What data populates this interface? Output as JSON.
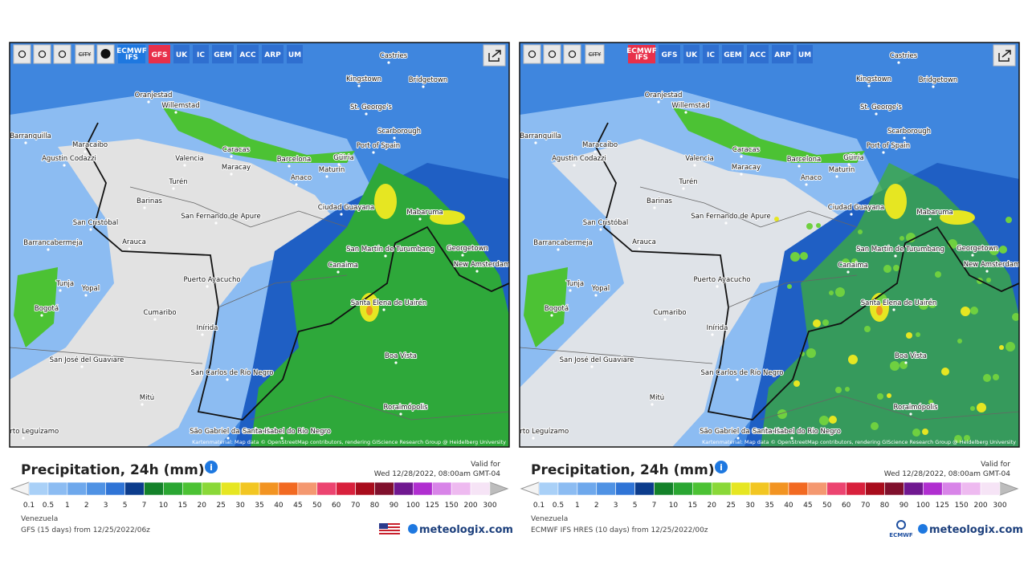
{
  "panels": [
    {
      "toolbar": {
        "city": "CITY",
        "models": [
          "ECMWF IFS",
          "GFS",
          "UK",
          "IC",
          "GEM",
          "ACC",
          "ARP",
          "UM"
        ],
        "active": 1
      },
      "cities": [
        "Castries",
        "Kingstown",
        "Bridgetown",
        "Oranjestad",
        "Willemstad",
        "St. George's",
        "Barranquilla",
        "Scarborough",
        "Maracaibo",
        "Port of Spain",
        "Caracas",
        "Agustin Codazzi",
        "Valencia",
        "Barcelona",
        "Güiria",
        "Maracay",
        "Maturín",
        "Anaco",
        "Turén",
        "Barinas",
        "Ciudad Guayana",
        "Mabaruma",
        "San Fernando de Apure",
        "San Cristóbal",
        "Arauca",
        "Barrancabermeja",
        "San Martín de Turumbang",
        "Georgetown",
        "Canaima",
        "New Amsterdam",
        "Tunja",
        "Puerto Ayacucho",
        "Yopal",
        "Santa Elena de Uairén",
        "Bogotá",
        "Cumaribo",
        "Inírida",
        "Boa Vista",
        "San José del Guaviare",
        "San Carlos de Río Negro",
        "Mitú",
        "Roraimópolis",
        "São Gabriel da Cachoeira",
        "Santa Isabel do Rio Negro",
        "Puerto Leguízamo"
      ],
      "attribution": "Kartenmaterial: Map data © OpenStreetMap contributors, rendering GIScience Research Group @ Heidelberg University",
      "title": "Precipitation, 24h (mm)",
      "valid_label": "Valid for",
      "valid_time": "Wed 12/28/2022, 08:00am GMT-04",
      "region": "Venezuela",
      "model_run": "GFS (15 days) from 12/25/2022/06z",
      "brand": "meteologix.com"
    },
    {
      "toolbar": {
        "city": "CITY",
        "models": [
          "ECMWF IFS",
          "GFS",
          "UK",
          "IC",
          "GEM",
          "ACC",
          "ARP",
          "UM"
        ],
        "active": 0
      },
      "cities": [
        "Castries",
        "Kingstown",
        "Bridgetown",
        "Oranjestad",
        "Willemstad",
        "St. George's",
        "Barranquilla",
        "Scarborough",
        "Maracaibo",
        "Port of Spain",
        "Caracas",
        "Agustin Codazzi",
        "Valencia",
        "Barcelona",
        "Güiria",
        "Maracay",
        "Maturín",
        "Anaco",
        "Turén",
        "Barinas",
        "Ciudad Guayana",
        "Mabaruma",
        "San Fernando de Apure",
        "San Cristóbal",
        "Arauca",
        "Barrancabermeja",
        "San Martín de Turumbang",
        "Georgetown",
        "Canaima",
        "New Amsterdam",
        "Tunja",
        "Puerto Ayacucho",
        "Yopal",
        "Santa Elena de Uairén",
        "Bogotá",
        "Cumaribo",
        "Inírida",
        "Boa Vista",
        "San José del Guaviare",
        "San Carlos de Río Negro",
        "Mitú",
        "Roraimópolis",
        "São Gabriel da Cachoeira",
        "Santa Isabel do Rio Negro",
        "Puerto Leguízamo"
      ],
      "attribution": "Kartenmaterial: Map data © OpenStreetMap contributors, rendering GIScience Research Group @ Heidelberg University",
      "title": "Precipitation, 24h (mm)",
      "valid_label": "Valid for",
      "valid_time": "Wed 12/28/2022, 08:00am GMT-04",
      "region": "Venezuela",
      "model_run": "ECMWF IFS HRES (10 days) from 12/25/2022/00z",
      "brand": "meteologix.com",
      "brand_badge": "ECMWF"
    }
  ],
  "legend": {
    "labels": [
      "0.1",
      "0.5",
      "1",
      "2",
      "3",
      "5",
      "7",
      "10",
      "15",
      "20",
      "25",
      "30",
      "35",
      "40",
      "45",
      "50",
      "60",
      "70",
      "80",
      "90",
      "100",
      "125",
      "150",
      "200",
      "300"
    ],
    "colors": [
      "#a9d0f7",
      "#8cbcf2",
      "#6ea8ec",
      "#4f92e4",
      "#2f74d6",
      "#0c3c8c",
      "#14822a",
      "#2aa632",
      "#4cc234",
      "#8ad838",
      "#e6e622",
      "#f2c622",
      "#f29422",
      "#f26a22",
      "#f49870",
      "#ec4470",
      "#d8203c",
      "#a80c1c",
      "#80102c",
      "#701890",
      "#b02ed0",
      "#d884e8",
      "#eebaf0",
      "#f6e4f6"
    ]
  }
}
